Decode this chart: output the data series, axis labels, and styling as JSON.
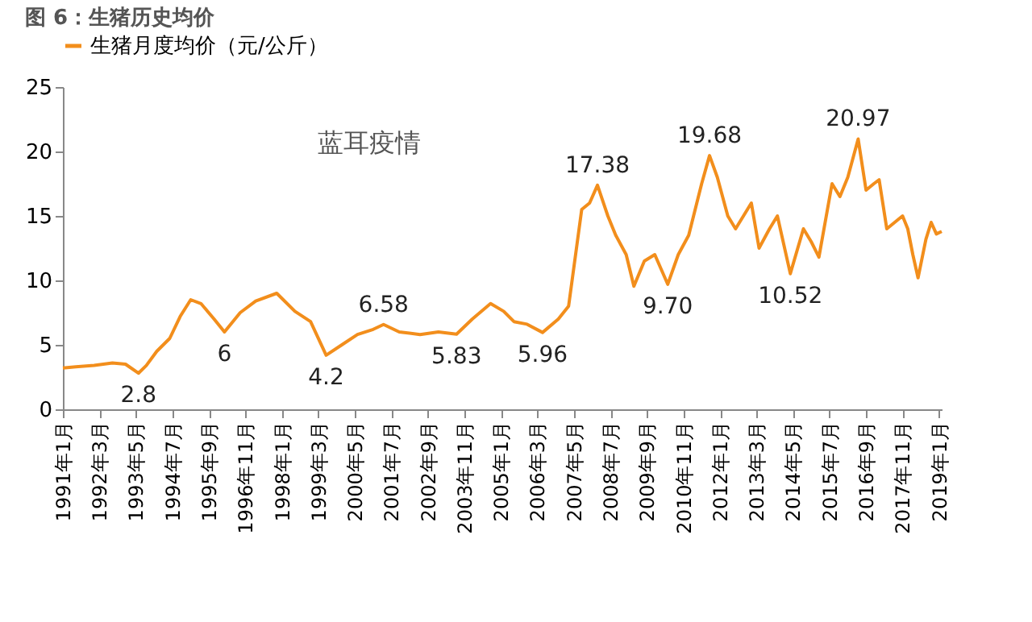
{
  "chart_data": {
    "type": "line",
    "title": "图 6：生猪历史均价",
    "x": [
      "1991-01",
      "1991-06",
      "1992-01",
      "1992-08",
      "1993-01",
      "1993-06",
      "1993-09",
      "1994-01",
      "1994-06",
      "1994-10",
      "1995-02",
      "1995-06",
      "1995-11",
      "1996-03",
      "1996-09",
      "1997-03",
      "1997-11",
      "1998-06",
      "1998-12",
      "1999-06",
      "1999-12",
      "2000-06",
      "2000-12",
      "2001-04",
      "2001-10",
      "2002-06",
      "2003-01",
      "2003-08",
      "2004-02",
      "2004-09",
      "2005-02",
      "2005-06",
      "2005-11",
      "2006-05",
      "2006-11",
      "2007-03",
      "2007-08",
      "2007-11",
      "2008-02",
      "2008-06",
      "2008-09",
      "2009-01",
      "2009-04",
      "2009-08",
      "2009-12",
      "2010-05",
      "2010-09",
      "2011-01",
      "2011-06",
      "2011-09",
      "2011-12",
      "2012-04",
      "2012-07",
      "2012-10",
      "2013-01",
      "2013-04",
      "2013-08",
      "2013-11",
      "2014-04",
      "2014-09",
      "2014-12",
      "2015-03",
      "2015-08",
      "2015-11",
      "2016-02",
      "2016-06",
      "2016-09",
      "2016-12",
      "2017-02",
      "2017-05",
      "2017-08",
      "2017-11",
      "2018-01",
      "2018-03",
      "2018-05",
      "2018-08",
      "2018-10",
      "2018-12",
      "2019-02"
    ],
    "series": [
      {
        "name": "生猪月度均价（元/公斤）",
        "color": "#f28e1c",
        "values": [
          3.2,
          3.3,
          3.4,
          3.6,
          3.5,
          2.8,
          3.4,
          4.5,
          5.5,
          7.2,
          8.5,
          8.2,
          7.0,
          6.0,
          7.5,
          8.4,
          9.0,
          7.6,
          6.8,
          4.2,
          5.0,
          5.8,
          6.2,
          6.58,
          6.0,
          5.8,
          6.0,
          5.83,
          7.0,
          8.2,
          7.6,
          6.8,
          6.6,
          5.96,
          7.0,
          8.0,
          15.5,
          16.0,
          17.38,
          15.0,
          13.5,
          12.0,
          9.55,
          11.5,
          12.0,
          9.7,
          12.0,
          13.5,
          17.5,
          19.68,
          18.0,
          15.0,
          14.0,
          15.0,
          16.0,
          12.5,
          14.0,
          15.0,
          10.52,
          14.0,
          13.0,
          11.8,
          17.5,
          16.5,
          18.0,
          20.97,
          17.0,
          17.5,
          17.8,
          14.0,
          14.5,
          15.0,
          14.0,
          12.0,
          10.2,
          13.2,
          14.5,
          13.6,
          13.8
        ]
      }
    ],
    "ylim": [
      0,
      25
    ],
    "yticks": [
      0,
      5,
      10,
      15,
      20,
      25
    ],
    "xlim": [
      "1991-01",
      "2019-02"
    ],
    "xticks": [
      {
        "value": "1991-01",
        "label": "1991年1月"
      },
      {
        "value": "1992-03",
        "label": "1992年3月"
      },
      {
        "value": "1993-05",
        "label": "1993年5月"
      },
      {
        "value": "1994-07",
        "label": "1994年7月"
      },
      {
        "value": "1995-09",
        "label": "1995年9月"
      },
      {
        "value": "1996-11",
        "label": "1996年11月"
      },
      {
        "value": "1998-01",
        "label": "1998年1月"
      },
      {
        "value": "1999-03",
        "label": "1999年3月"
      },
      {
        "value": "2000-05",
        "label": "2000年5月"
      },
      {
        "value": "2001-07",
        "label": "2001年7月"
      },
      {
        "value": "2002-09",
        "label": "2002年9月"
      },
      {
        "value": "2003-11",
        "label": "2003年11月"
      },
      {
        "value": "2005-01",
        "label": "2005年1月"
      },
      {
        "value": "2006-03",
        "label": "2006年3月"
      },
      {
        "value": "2007-05",
        "label": "2007年5月"
      },
      {
        "value": "2008-07",
        "label": "2008年7月"
      },
      {
        "value": "2009-09",
        "label": "2009年9月"
      },
      {
        "value": "2010-11",
        "label": "2010年11月"
      },
      {
        "value": "2012-01",
        "label": "2012年1月"
      },
      {
        "value": "2013-03",
        "label": "2013年3月"
      },
      {
        "value": "2014-05",
        "label": "2014年5月"
      },
      {
        "value": "2015-07",
        "label": "2015年7月"
      },
      {
        "value": "2016-09",
        "label": "2016年9月"
      },
      {
        "value": "2017-11",
        "label": "2017年11月"
      },
      {
        "value": "2019-01",
        "label": "2019年1月"
      }
    ],
    "annotations": [
      {
        "text": "2.8",
        "x": "1993-06",
        "y": 2.8
      },
      {
        "text": "6",
        "x": "1996-03",
        "y": 6.0
      },
      {
        "text": "4.2",
        "x": "1999-06",
        "y": 4.2
      },
      {
        "text": "6.58",
        "x": "2001-04",
        "y": 6.58
      },
      {
        "text": "5.83",
        "x": "2003-08",
        "y": 5.83
      },
      {
        "text": "5.96",
        "x": "2006-05",
        "y": 5.96
      },
      {
        "text": "17.38",
        "x": "2008-02",
        "y": 17.38
      },
      {
        "text": "9.70",
        "x": "2010-05",
        "y": 9.7
      },
      {
        "text": "19.68",
        "x": "2011-09",
        "y": 19.68
      },
      {
        "text": "10.52",
        "x": "2014-04",
        "y": 10.52
      },
      {
        "text": "20.97",
        "x": "2016-06",
        "y": 20.97
      },
      "蓝耳疫情"
    ],
    "legend": "top",
    "grid": false,
    "marker": "none",
    "line_style": "solid"
  }
}
